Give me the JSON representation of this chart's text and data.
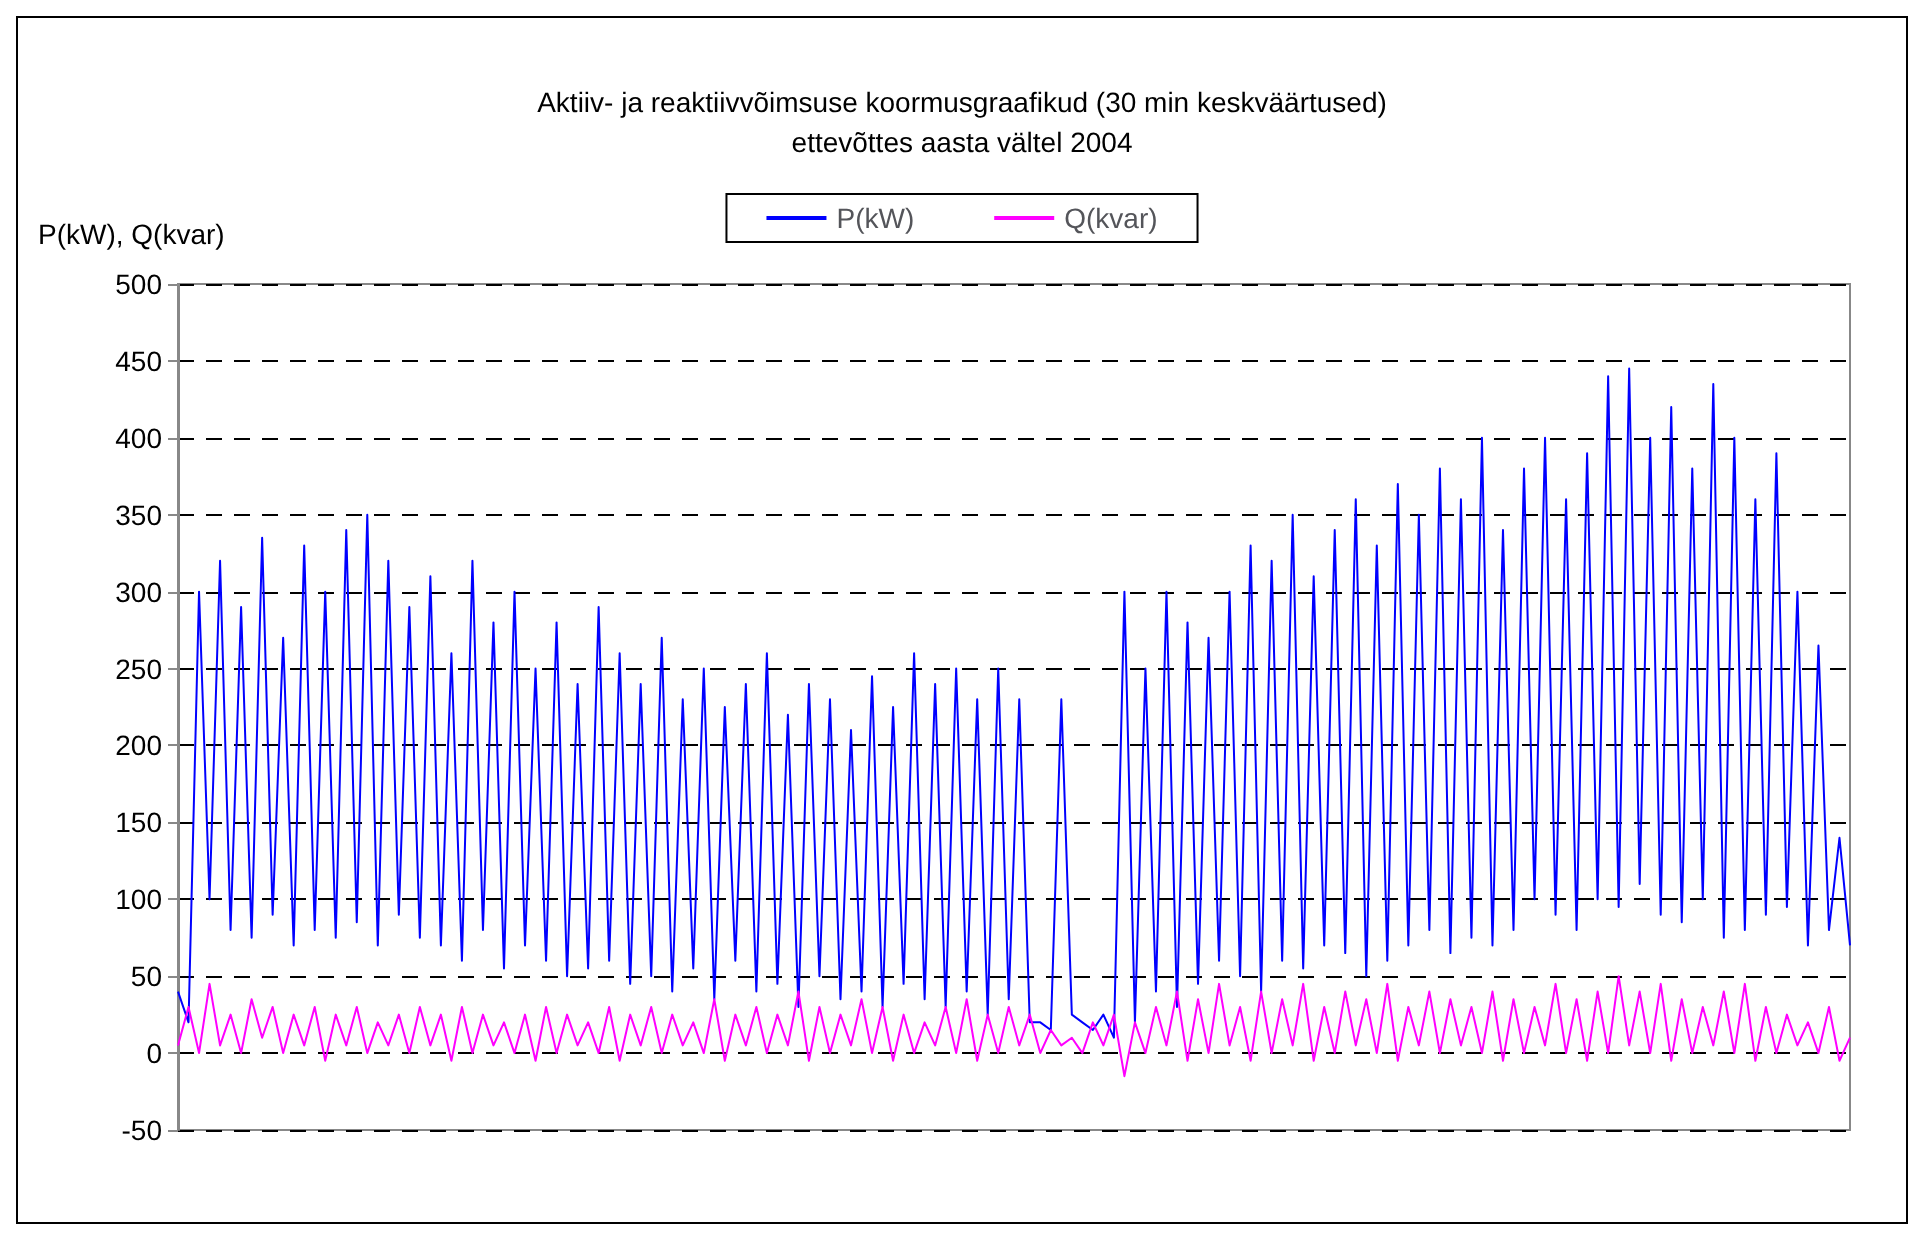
{
  "chart_data": {
    "type": "line",
    "title": "Aktiiv- ja reaktiivvõimsuse koormusgraafikud (30 min keskväärtused)",
    "subtitle": "ettevõttes aasta vältel 2004",
    "ylabel": "P(kW), Q(kvar)",
    "categories": [
      null,
      null,
      null,
      null,
      null,
      null,
      null,
      null,
      null,
      null,
      null,
      null,
      null,
      null,
      null,
      null,
      null,
      null,
      null,
      null,
      null,
      null,
      null,
      null,
      null,
      null,
      null,
      null,
      null,
      null,
      null,
      null,
      null,
      null,
      null,
      null,
      null,
      null,
      null,
      null,
      null,
      null,
      null,
      null,
      null,
      null,
      null,
      null,
      null,
      null,
      null,
      null,
      null,
      null,
      null,
      null,
      null,
      null,
      null,
      null,
      null,
      null,
      null,
      null,
      null,
      null,
      null,
      null,
      null,
      null,
      null,
      null,
      null,
      null,
      null,
      null,
      null,
      null,
      null,
      null,
      null,
      null,
      null,
      null,
      null,
      null,
      null,
      null,
      null,
      null,
      null,
      null,
      null,
      null,
      null,
      null,
      null,
      null,
      null,
      null,
      null,
      null,
      null,
      null,
      null,
      null,
      null,
      null,
      null,
      null,
      null,
      null,
      null,
      null,
      null,
      null,
      null,
      null,
      null,
      null,
      null,
      null,
      null,
      null,
      null,
      null,
      null,
      null,
      null,
      null,
      null,
      null,
      null,
      null,
      null,
      null,
      null,
      null,
      null,
      null,
      null,
      null,
      null,
      null,
      null,
      null,
      null,
      null,
      null,
      null,
      null,
      null,
      null,
      null,
      null,
      null,
      null,
      null,
      null,
      null
    ],
    "series": [
      {
        "name": "P(kW)",
        "color": "#0000ff",
        "values": [
          40,
          20,
          300,
          100,
          320,
          80,
          290,
          75,
          335,
          90,
          270,
          70,
          330,
          80,
          300,
          75,
          340,
          85,
          350,
          70,
          320,
          90,
          290,
          75,
          310,
          70,
          260,
          60,
          320,
          80,
          280,
          55,
          300,
          70,
          250,
          60,
          280,
          50,
          240,
          55,
          290,
          60,
          260,
          45,
          240,
          50,
          270,
          40,
          230,
          55,
          250,
          35,
          225,
          60,
          240,
          40,
          260,
          45,
          220,
          30,
          240,
          50,
          230,
          35,
          210,
          40,
          245,
          30,
          225,
          45,
          260,
          35,
          240,
          30,
          250,
          40,
          230,
          25,
          250,
          35,
          230,
          20,
          20,
          15,
          230,
          25,
          20,
          15,
          25,
          10,
          300,
          20,
          250,
          40,
          300,
          30,
          280,
          45,
          270,
          60,
          300,
          50,
          330,
          40,
          320,
          60,
          350,
          55,
          310,
          70,
          340,
          65,
          360,
          50,
          330,
          60,
          370,
          70,
          350,
          80,
          380,
          65,
          360,
          75,
          400,
          70,
          340,
          80,
          380,
          100,
          400,
          90,
          360,
          80,
          390,
          100,
          440,
          95,
          445,
          110,
          400,
          90,
          420,
          85,
          380,
          100,
          435,
          75,
          400,
          80,
          360,
          90,
          390,
          95,
          300,
          70,
          265,
          80,
          140,
          70
        ]
      },
      {
        "name": "Q(kvar)",
        "color": "#ff00ff",
        "values": [
          5,
          30,
          0,
          45,
          5,
          25,
          0,
          35,
          10,
          30,
          0,
          25,
          5,
          30,
          -5,
          25,
          5,
          30,
          0,
          20,
          5,
          25,
          0,
          30,
          5,
          25,
          -5,
          30,
          0,
          25,
          5,
          20,
          0,
          25,
          -5,
          30,
          0,
          25,
          5,
          20,
          0,
          30,
          -5,
          25,
          5,
          30,
          0,
          25,
          5,
          20,
          0,
          35,
          -5,
          25,
          5,
          30,
          0,
          25,
          5,
          40,
          -5,
          30,
          0,
          25,
          5,
          35,
          0,
          30,
          -5,
          25,
          0,
          20,
          5,
          30,
          0,
          35,
          -5,
          25,
          0,
          30,
          5,
          25,
          0,
          15,
          5,
          10,
          0,
          20,
          5,
          25,
          -15,
          20,
          0,
          30,
          5,
          40,
          -5,
          35,
          0,
          45,
          5,
          30,
          -5,
          40,
          0,
          35,
          5,
          45,
          -5,
          30,
          0,
          40,
          5,
          35,
          0,
          45,
          -5,
          30,
          5,
          40,
          0,
          35,
          5,
          30,
          0,
          40,
          -5,
          35,
          0,
          30,
          5,
          45,
          0,
          35,
          -5,
          40,
          0,
          50,
          5,
          40,
          0,
          45,
          -5,
          35,
          0,
          30,
          5,
          40,
          0,
          45,
          -5,
          30,
          0,
          25,
          5,
          20,
          0,
          30,
          -5,
          10
        ]
      }
    ],
    "ylim": [
      -50,
      500
    ],
    "yticks": [
      -50,
      0,
      50,
      100,
      150,
      200,
      250,
      300,
      350,
      400,
      450,
      500
    ],
    "grid": "y",
    "legend": "top",
    "line_style": "solid",
    "marker": "none"
  }
}
